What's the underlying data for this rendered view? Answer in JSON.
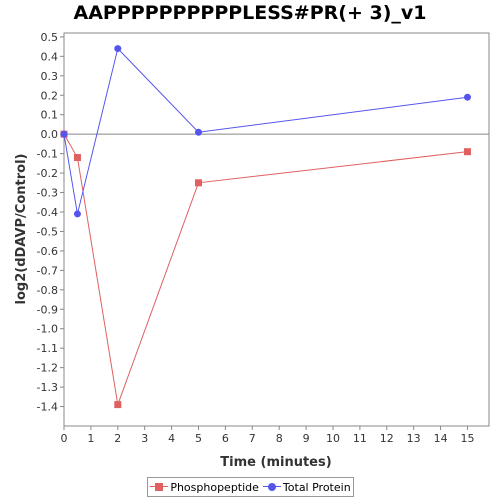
{
  "chart_data": {
    "type": "line",
    "title": "AAPPPPPPPPPPLESS#PR(+ 3)_v1",
    "xlabel": "Time (minutes)",
    "ylabel": "log2(dDAVP/Control)",
    "xlim": [
      0,
      15.8
    ],
    "ylim": [
      -1.5,
      0.52
    ],
    "xticks": [
      0,
      1,
      2,
      3,
      4,
      5,
      6,
      7,
      8,
      9,
      10,
      11,
      12,
      13,
      14,
      15
    ],
    "yticks": [
      -1.4,
      -1.3,
      -1.2,
      -1.1,
      -1.0,
      -0.9,
      -0.8,
      -0.7,
      -0.6,
      -0.5,
      -0.4,
      -0.3,
      -0.2,
      -0.1,
      0.0,
      0.1,
      0.2,
      0.3,
      0.4,
      0.5
    ],
    "grid": false,
    "legend_position": "bottom",
    "series": [
      {
        "name": "Phosphopeptide",
        "color": "#e06060",
        "marker": "square",
        "x": [
          0,
          0.5,
          2,
          5,
          15
        ],
        "y": [
          0.0,
          -0.12,
          -1.39,
          -0.25,
          -0.09
        ]
      },
      {
        "name": "Total Protein",
        "color": "#5555ee",
        "marker": "circle",
        "x": [
          0,
          0.5,
          2,
          5,
          15
        ],
        "y": [
          0.0,
          -0.41,
          0.44,
          0.01,
          0.19
        ]
      }
    ]
  }
}
